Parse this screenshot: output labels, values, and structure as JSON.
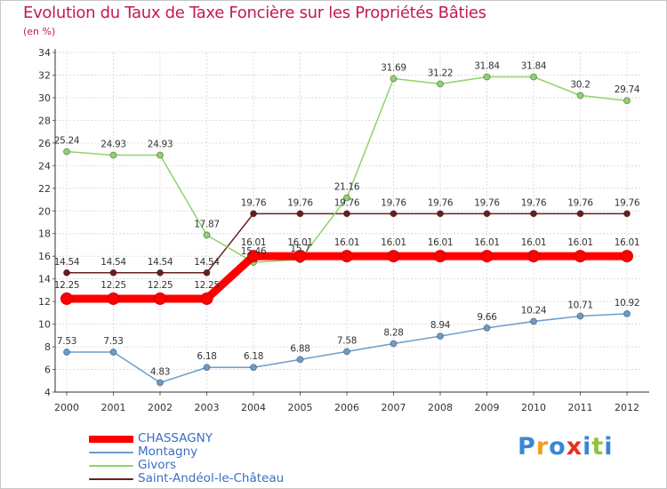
{
  "chart_data": {
    "type": "line",
    "title": "Evolution du Taux de Taxe Foncière sur les Propriétés Bâties",
    "subtitle": "(en %)",
    "x": [
      "2000",
      "2001",
      "2002",
      "2003",
      "2004",
      "2005",
      "2006",
      "2007",
      "2008",
      "2009",
      "2010",
      "2011",
      "2012"
    ],
    "ylim": [
      4,
      34
    ],
    "yticks": [
      4,
      6,
      8,
      10,
      12,
      14,
      16,
      18,
      20,
      22,
      24,
      26,
      28,
      30,
      32,
      34
    ],
    "grid": true,
    "series": [
      {
        "name": "Saint-Andéol-le-Château",
        "color": "#6b1d1d",
        "values": [
          14.54,
          14.54,
          14.54,
          14.54,
          19.76,
          19.76,
          19.76,
          19.76,
          19.76,
          19.76,
          19.76,
          19.76,
          19.76
        ],
        "labels": [
          "14.54",
          "14.54",
          "14.54",
          "14.54",
          "19.76",
          "19.76",
          "19.76",
          "19.76",
          "19.76",
          "19.76",
          "19.76",
          "19.76",
          "19.76"
        ]
      },
      {
        "name": "Givors",
        "color": "#8fd36a",
        "values": [
          25.24,
          24.93,
          24.93,
          17.87,
          15.46,
          15.7,
          21.16,
          31.69,
          31.22,
          31.84,
          31.84,
          30.2,
          29.74
        ],
        "labels": [
          "25.24",
          "24.93",
          "24.93",
          "17.87",
          "15.46",
          "15.7",
          "21.16",
          "31.69",
          "31.22",
          "31.84",
          "31.84",
          "30.2",
          "29.74"
        ]
      },
      {
        "name": "Montagny",
        "color": "#6b9dcb",
        "values": [
          7.53,
          7.53,
          4.83,
          6.18,
          6.18,
          6.88,
          7.58,
          8.28,
          8.94,
          9.66,
          10.24,
          10.71,
          10.92
        ],
        "labels": [
          "7.53",
          "7.53",
          "4.83",
          "6.18",
          "6.18",
          "6.88",
          "7.58",
          "8.28",
          "8.94",
          "9.66",
          "10.24",
          "10.71",
          "10.92"
        ]
      },
      {
        "name": "CHASSAGNY",
        "color": "#ff0000",
        "values": [
          12.25,
          12.25,
          12.25,
          12.25,
          16.01,
          16.01,
          16.01,
          16.01,
          16.01,
          16.01,
          16.01,
          16.01,
          16.01
        ],
        "labels": [
          "12.25",
          "12.25",
          "12.25",
          "12.25",
          "16.01",
          "16.01",
          "16.01",
          "16.01",
          "16.01",
          "16.01",
          "16.01",
          "16.01",
          "16.01"
        ]
      }
    ]
  },
  "legend": {
    "items": [
      {
        "label": "CHASSAGNY",
        "color": "#ff0000",
        "weight": 8
      },
      {
        "label": "Montagny",
        "color": "#6b9dcb",
        "weight": 2
      },
      {
        "label": "Givors",
        "color": "#8fd36a",
        "weight": 2
      },
      {
        "label": "Saint-Andéol-le-Château",
        "color": "#6b1d1d",
        "weight": 2
      }
    ]
  },
  "logo": {
    "letters": [
      "P",
      "r",
      "o",
      "x",
      "i",
      "t",
      "i"
    ],
    "colors": [
      "#3a86d4",
      "#f0a020",
      "#3a86d4",
      "#e83020",
      "#3a86d4",
      "#8fc43a",
      "#3a86d4"
    ]
  }
}
